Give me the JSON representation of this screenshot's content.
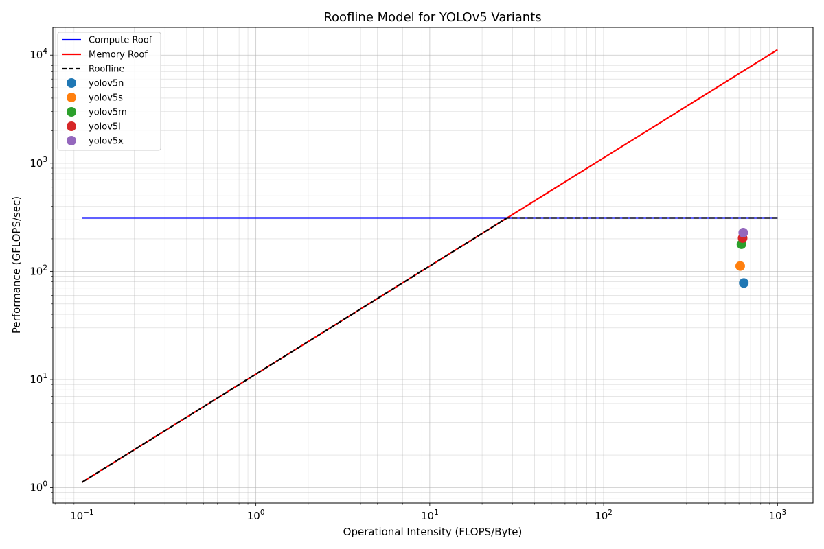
{
  "chart_data": {
    "type": "line",
    "title": "Roofline Model for YOLOv5 Variants",
    "xlabel": "Operational Intensity (FLOPS/Byte)",
    "ylabel": "Performance (GFLOPS/sec)",
    "x_scale": "log",
    "y_scale": "log",
    "xlim": [
      0.068,
      1600
    ],
    "ylim": [
      0.72,
      18000
    ],
    "grid": true,
    "legend_position": "top-left",
    "x_ticks": [
      {
        "base": "10",
        "exp": "−1",
        "value": 0.1
      },
      {
        "base": "10",
        "exp": "0",
        "value": 1
      },
      {
        "base": "10",
        "exp": "1",
        "value": 10
      },
      {
        "base": "10",
        "exp": "2",
        "value": 100
      },
      {
        "base": "10",
        "exp": "3",
        "value": 1000
      }
    ],
    "y_ticks": [
      {
        "base": "10",
        "exp": "0",
        "value": 1
      },
      {
        "base": "10",
        "exp": "1",
        "value": 10
      },
      {
        "base": "10",
        "exp": "2",
        "value": 100
      },
      {
        "base": "10",
        "exp": "3",
        "value": 1000
      },
      {
        "base": "10",
        "exp": "4",
        "value": 10000
      }
    ],
    "lines": [
      {
        "name": "Compute Roof",
        "color": "#0000ff",
        "style": "solid",
        "points": [
          [
            0.1,
            312
          ],
          [
            1000,
            312
          ]
        ]
      },
      {
        "name": "Memory Roof",
        "color": "#ff0000",
        "style": "solid",
        "points": [
          [
            0.1,
            1.12
          ],
          [
            1000,
            11200
          ]
        ]
      },
      {
        "name": "Roofline",
        "color": "#000000",
        "style": "dashed",
        "points": [
          [
            0.1,
            1.12
          ],
          [
            27.86,
            312
          ],
          [
            1000,
            312
          ]
        ]
      }
    ],
    "series": [
      {
        "name": "yolov5n",
        "color": "#1f77b4",
        "x": 640,
        "y": 78
      },
      {
        "name": "yolov5s",
        "color": "#ff7f0e",
        "x": 610,
        "y": 112
      },
      {
        "name": "yolov5m",
        "color": "#2ca02c",
        "x": 620,
        "y": 178
      },
      {
        "name": "yolov5l",
        "color": "#d62728",
        "x": 630,
        "y": 203
      },
      {
        "name": "yolov5x",
        "color": "#9467bd",
        "x": 635,
        "y": 228
      }
    ]
  }
}
